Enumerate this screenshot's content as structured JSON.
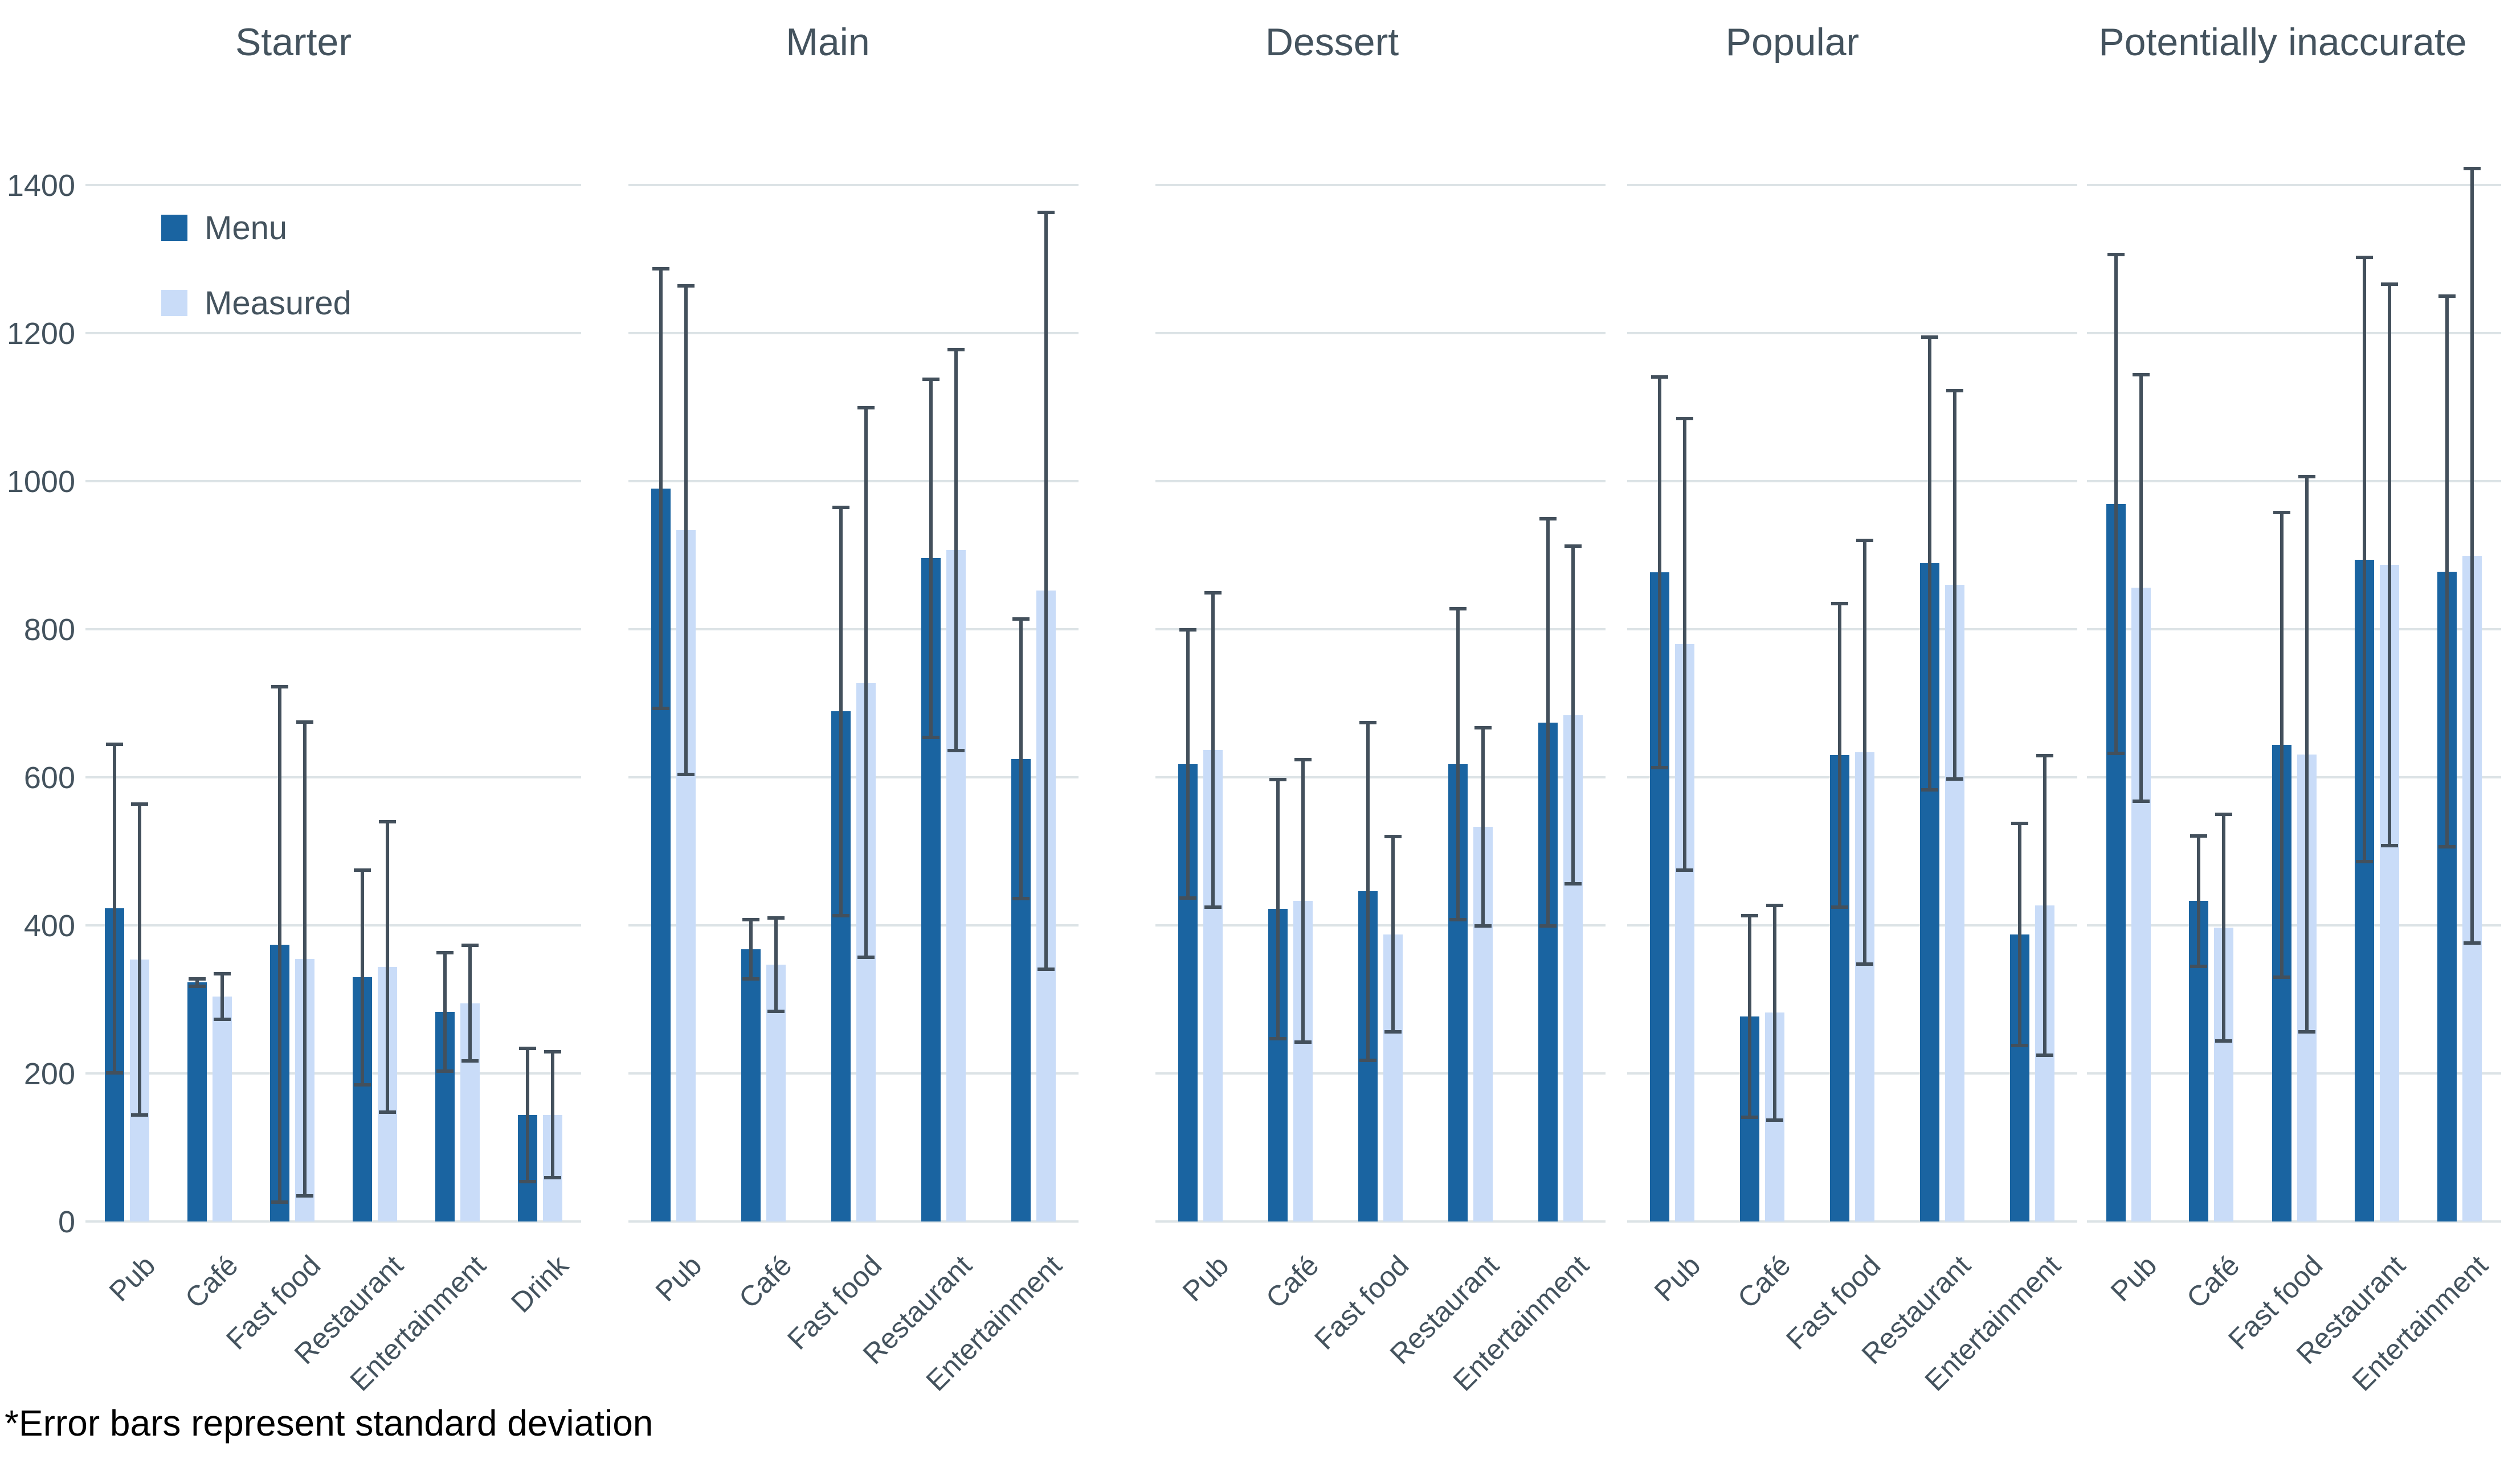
{
  "legend": {
    "menu": "Menu",
    "measured": "Measured"
  },
  "footnote": "*Error bars represent standard deviation",
  "colors": {
    "menu_bar": "#1A64A1",
    "measured_bar": "#C9DCF8",
    "error_bar": "#43505C",
    "gridline": "#DCE3E6",
    "text": "#44535E",
    "footnote_text": "#000000"
  },
  "chart_data": {
    "type": "bar",
    "ylim": [
      0,
      1400
    ],
    "yticks": [
      1400,
      1200,
      1000,
      800,
      600,
      400,
      200,
      0
    ],
    "grid": "horizontal",
    "legend_position": "top-left-first-panel",
    "error_bars": "standard deviation, symmetric",
    "series_names": [
      "Menu",
      "Measured"
    ],
    "panels": [
      {
        "title": "Starter",
        "categories": [
          "Pub",
          "Café",
          "Fast food",
          "Restaurant",
          "Entertainment",
          "Drink"
        ],
        "series": [
          {
            "name": "Menu",
            "values": [
              423,
              323,
              374,
              330,
              283,
              144
            ],
            "sd": [
              222,
              5,
              348,
              145,
              80,
              90
            ]
          },
          {
            "name": "Measured",
            "values": [
              354,
              304,
              355,
              344,
              295,
              144
            ],
            "sd": [
              210,
              31,
              320,
              196,
              78,
              85
            ]
          }
        ]
      },
      {
        "title": "Main",
        "categories": [
          "Pub",
          "Café",
          "Fast food",
          "Restaurant",
          "Entertainment"
        ],
        "series": [
          {
            "name": "Menu",
            "values": [
              990,
              368,
              689,
              896,
              625
            ],
            "sd": [
              297,
              40,
              276,
              242,
              189
            ]
          },
          {
            "name": "Measured",
            "values": [
              934,
              347,
              728,
              907,
              852
            ],
            "sd": [
              330,
              63,
              371,
              271,
              511
            ]
          }
        ]
      },
      {
        "title": "Dessert",
        "categories": [
          "Pub",
          "Café",
          "Fast food",
          "Restaurant",
          "Entertainment"
        ],
        "series": [
          {
            "name": "Menu",
            "values": [
              618,
              422,
              446,
              618,
              674
            ],
            "sd": [
              181,
              175,
              228,
              210,
              275
            ]
          },
          {
            "name": "Measured",
            "values": [
              637,
              433,
              388,
              533,
              684
            ],
            "sd": [
              212,
              191,
              132,
              134,
              228
            ]
          }
        ]
      },
      {
        "title": "Popular",
        "categories": [
          "Pub",
          "Café",
          "Fast food",
          "Restaurant",
          "Entertainment"
        ],
        "series": [
          {
            "name": "Menu",
            "values": [
              877,
              277,
              630,
              889,
              388
            ],
            "sd": [
              264,
              136,
              205,
              306,
              150
            ]
          },
          {
            "name": "Measured",
            "values": [
              780,
              282,
              634,
              860,
              427
            ],
            "sd": [
              305,
              145,
              286,
              262,
              202
            ]
          }
        ]
      },
      {
        "title": "Potentially inaccurate",
        "categories": [
          "Pub",
          "Café",
          "Fast food",
          "Restaurant",
          "Entertainment"
        ],
        "series": [
          {
            "name": "Menu",
            "values": [
              969,
              433,
              644,
              894,
              878
            ],
            "sd": [
              337,
              88,
              314,
              408,
              372
            ]
          },
          {
            "name": "Measured",
            "values": [
              856,
              397,
              631,
              887,
              899
            ],
            "sd": [
              288,
              153,
              375,
              379,
              523
            ]
          }
        ]
      }
    ]
  }
}
